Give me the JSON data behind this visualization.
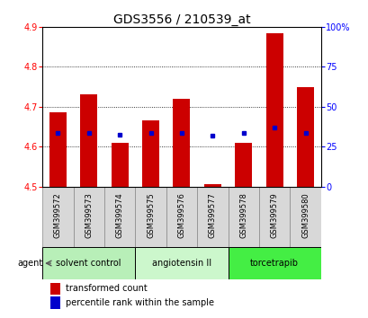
{
  "title": "GDS3556 / 210539_at",
  "samples": [
    "GSM399572",
    "GSM399573",
    "GSM399574",
    "GSM399575",
    "GSM399576",
    "GSM399577",
    "GSM399578",
    "GSM399579",
    "GSM399580"
  ],
  "bar_heights": [
    4.685,
    4.73,
    4.61,
    4.665,
    4.72,
    4.505,
    4.61,
    4.885,
    4.75
  ],
  "bar_base": 4.5,
  "blue_dot_values": [
    4.635,
    4.635,
    4.63,
    4.635,
    4.635,
    4.628,
    4.635,
    4.648,
    4.635
  ],
  "bar_color": "#cc0000",
  "dot_color": "#0000cc",
  "ylim_left": [
    4.5,
    4.9
  ],
  "yticks_left": [
    4.5,
    4.6,
    4.7,
    4.8,
    4.9
  ],
  "ylim_right": [
    0,
    100
  ],
  "yticks_right": [
    0,
    25,
    50,
    75,
    100
  ],
  "yticklabels_right": [
    "0",
    "25",
    "50",
    "75",
    "100%"
  ],
  "group_defs": [
    {
      "label": "solvent control",
      "start": 0,
      "end": 2,
      "color": "#b8efb8"
    },
    {
      "label": "angiotensin II",
      "start": 3,
      "end": 5,
      "color": "#ccf7cc"
    },
    {
      "label": "torcetrapib",
      "start": 6,
      "end": 8,
      "color": "#44ee44"
    }
  ],
  "agent_label": "agent",
  "legend_items": [
    {
      "color": "#cc0000",
      "label": "transformed count"
    },
    {
      "color": "#0000cc",
      "label": "percentile rank within the sample"
    }
  ],
  "bar_width": 0.55,
  "title_fontsize": 10,
  "tick_fontsize": 7,
  "sample_fontsize": 6,
  "group_fontsize": 7,
  "legend_fontsize": 7,
  "cell_color": "#d8d8d8",
  "cell_edge": "#888888"
}
